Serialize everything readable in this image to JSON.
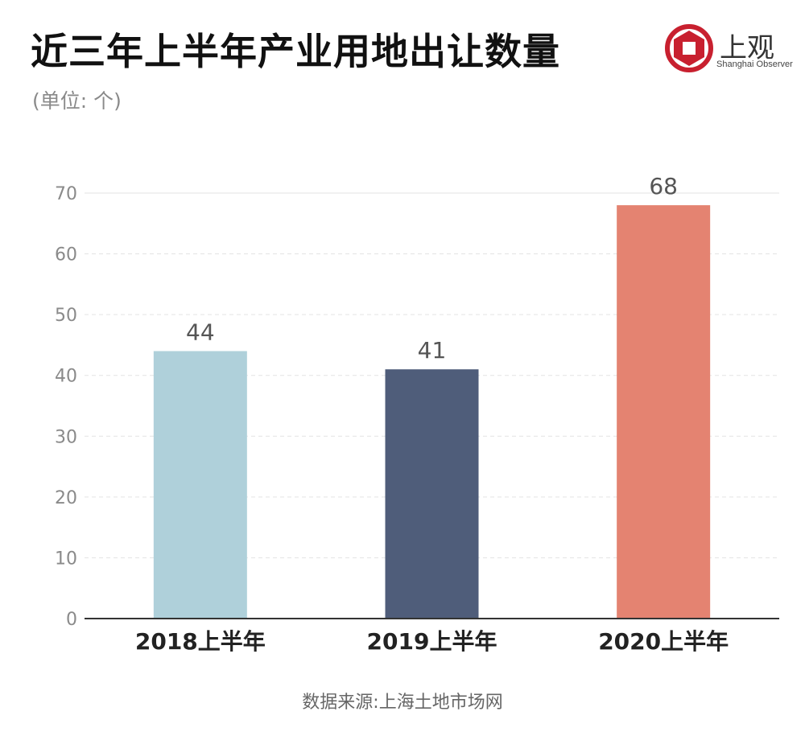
{
  "title": "近三年上半年产业用地出让数量",
  "unit_label": "(单位: 个)",
  "logo": {
    "name": "上观",
    "subtitle": "Shanghai Observer",
    "icon": "shanghai-observer-logo-icon",
    "color": "#c8202f"
  },
  "source": "数据来源:上海土地市场网",
  "chart_data": {
    "type": "bar",
    "categories": [
      "2018上半年",
      "2019上半年",
      "2020上半年"
    ],
    "values": [
      44,
      41,
      68
    ],
    "data_labels": [
      "44",
      "41",
      "68"
    ],
    "colors": [
      "#afd0da",
      "#4f5d7a",
      "#e48371"
    ],
    "title": "近三年上半年产业用地出让数量",
    "xlabel": "",
    "ylabel": "",
    "ylim": [
      0,
      70
    ],
    "yticks": [
      0,
      10,
      20,
      30,
      40,
      50,
      60,
      70
    ],
    "grid": true,
    "legend": "none"
  }
}
